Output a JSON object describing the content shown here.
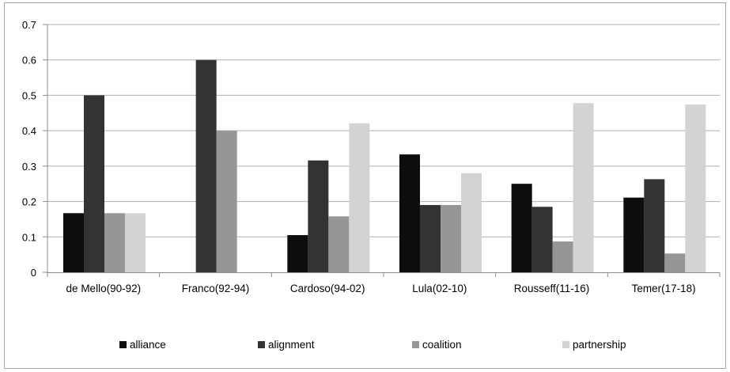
{
  "chart_data": {
    "type": "bar",
    "categories": [
      "de Mello(90-92)",
      "Franco(92-94)",
      "Cardoso(94-02)",
      "Lula(02-10)",
      "Rousseff(11-16)",
      "Temer(17-18)"
    ],
    "series": [
      {
        "name": "alliance",
        "color": "#0d0d0d",
        "values": [
          0.167,
          0,
          0.105,
          0.333,
          0.25,
          0.211
        ]
      },
      {
        "name": "alignment",
        "color": "#333333",
        "values": [
          0.5,
          0.6,
          0.316,
          0.19,
          0.185,
          0.263
        ]
      },
      {
        "name": "coalition",
        "color": "#969696",
        "values": [
          0.167,
          0.4,
          0.158,
          0.19,
          0.087,
          0.053
        ]
      },
      {
        "name": "partnership",
        "color": "#d3d3d3",
        "values": [
          0.167,
          0,
          0.421,
          0.28,
          0.478,
          0.474
        ]
      }
    ],
    "ylim": [
      0,
      0.7
    ],
    "yticks": [
      "0",
      "0.1",
      "0.2",
      "0.3",
      "0.4",
      "0.5",
      "0.6",
      "0.7"
    ],
    "grid": "horizontal",
    "legend_position": "bottom",
    "title": "",
    "xlabel": "",
    "ylabel": ""
  }
}
